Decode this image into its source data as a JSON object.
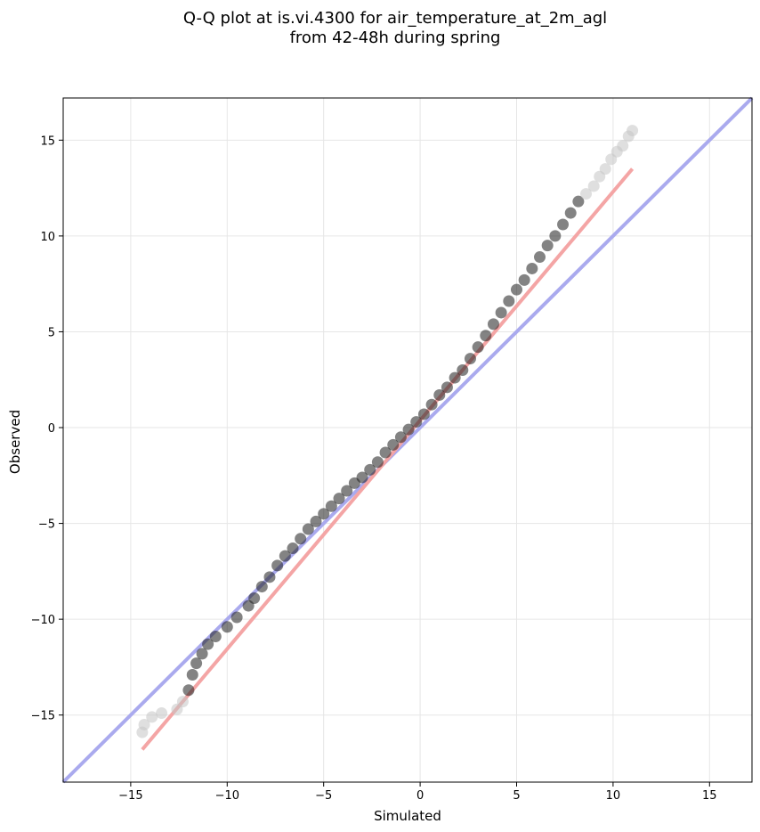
{
  "chart_data": {
    "type": "scatter",
    "title_line1": "Q-Q plot at is.vi.4300 for air_temperature_at_2m_agl",
    "title_line2": "from 42-48h during spring",
    "xlabel": "Simulated",
    "ylabel": "Observed",
    "xlim": [
      -18.5,
      17.2
    ],
    "ylim": [
      -18.5,
      17.2
    ],
    "xticks": [
      -15,
      -10,
      -5,
      0,
      5,
      10,
      15
    ],
    "yticks": [
      -15,
      -10,
      -5,
      0,
      5,
      10,
      15
    ],
    "xtick_labels": [
      "−15",
      "−10",
      "−5",
      "0",
      "5",
      "10",
      "15"
    ],
    "ytick_labels": [
      "−15",
      "−10",
      "−5",
      "0",
      "5",
      "10",
      "15"
    ],
    "grid": true,
    "reference_line": {
      "color": "#aaaaee",
      "x": [
        -18.5,
        17.2
      ],
      "y": [
        -18.5,
        17.2
      ]
    },
    "fit_line": {
      "color": "#f4a5a5",
      "x": [
        -14.4,
        11.0
      ],
      "y": [
        -16.8,
        13.5
      ]
    },
    "qq_points": {
      "x": [
        -14.4,
        -14.3,
        -13.9,
        -13.4,
        -12.6,
        -12.3,
        -12.0,
        -11.8,
        -11.6,
        -11.3,
        -11.0,
        -10.6,
        -10.0,
        -9.5,
        -8.9,
        -8.6,
        -8.2,
        -7.8,
        -7.4,
        -7.0,
        -6.6,
        -6.2,
        -5.8,
        -5.4,
        -5.0,
        -4.6,
        -4.2,
        -3.8,
        -3.4,
        -3.0,
        -2.6,
        -2.2,
        -1.8,
        -1.4,
        -1.0,
        -0.6,
        -0.2,
        0.2,
        0.6,
        1.0,
        1.4,
        1.8,
        2.2,
        2.6,
        3.0,
        3.4,
        3.8,
        4.2,
        4.6,
        5.0,
        5.4,
        5.8,
        6.2,
        6.6,
        7.0,
        7.4,
        7.8,
        8.2,
        8.6,
        9.0,
        9.3,
        9.6,
        9.9,
        10.2,
        10.5,
        10.8,
        11.0
      ],
      "y": [
        -15.9,
        -15.5,
        -15.1,
        -14.9,
        -14.7,
        -14.3,
        -13.7,
        -12.9,
        -12.3,
        -11.8,
        -11.3,
        -10.9,
        -10.4,
        -9.9,
        -9.3,
        -8.9,
        -8.3,
        -7.8,
        -7.2,
        -6.7,
        -6.3,
        -5.8,
        -5.3,
        -4.9,
        -4.5,
        -4.1,
        -3.7,
        -3.3,
        -2.9,
        -2.6,
        -2.2,
        -1.8,
        -1.3,
        -0.9,
        -0.5,
        -0.1,
        0.3,
        0.7,
        1.2,
        1.7,
        2.1,
        2.6,
        3.0,
        3.6,
        4.2,
        4.8,
        5.4,
        6.0,
        6.6,
        7.2,
        7.7,
        8.3,
        8.9,
        9.5,
        10.0,
        10.6,
        11.2,
        11.8,
        12.2,
        12.6,
        13.1,
        13.5,
        14.0,
        14.4,
        14.7,
        15.2,
        15.5
      ]
    }
  }
}
